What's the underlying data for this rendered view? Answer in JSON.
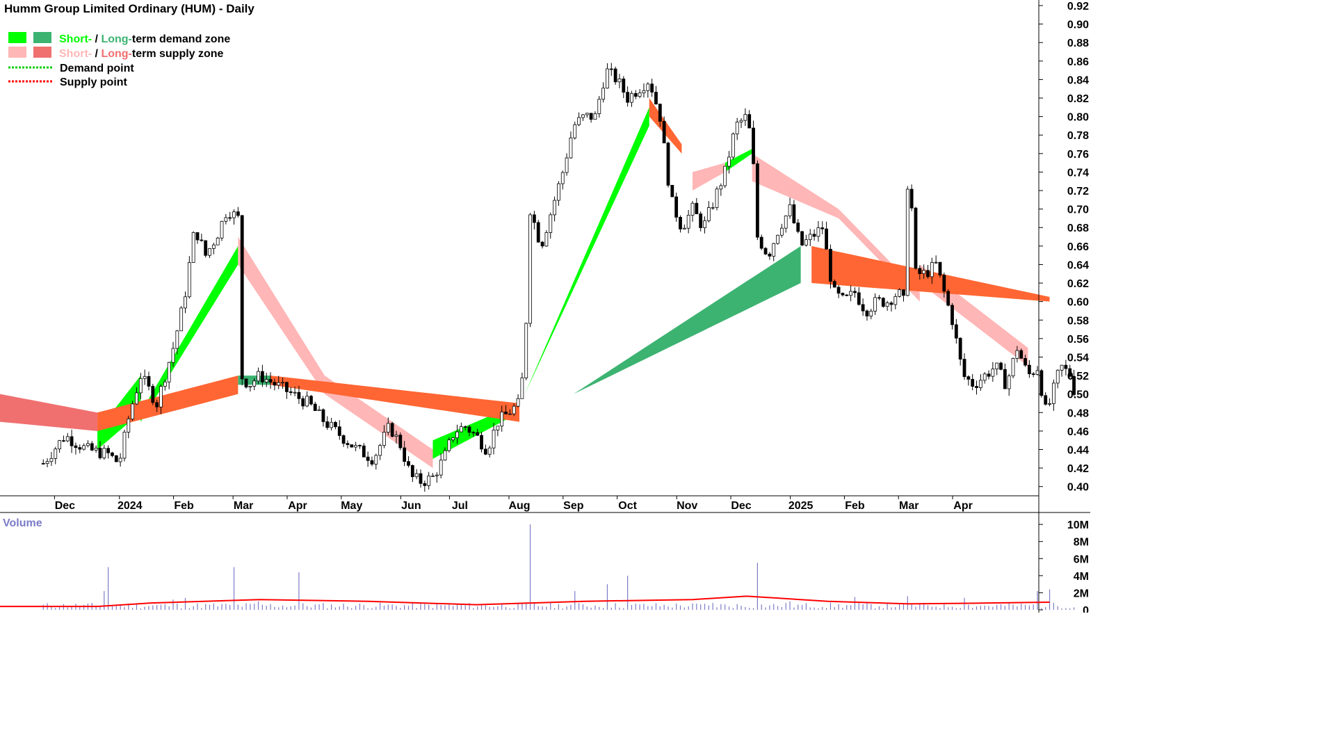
{
  "title": "Humm Group Limited Ordinary (HUM) - Daily",
  "legend": {
    "demand_zone": {
      "short": "Short-",
      "sep": " / ",
      "long": "Long-",
      "rest": "term demand zone"
    },
    "supply_zone": {
      "short": "Short-",
      "sep": " / ",
      "long": "Long-",
      "rest": "term supply zone"
    },
    "demand_point": "Demand point",
    "supply_point": "Supply point"
  },
  "colors": {
    "short_demand": "#00ff00",
    "long_demand": "#3cb371",
    "short_supply": "#ffb6b6",
    "long_supply": "#ff6633",
    "long_supply_legend": "#f07070",
    "demand_point": "#00cc00",
    "supply_point": "#ff0000",
    "volume_bar": "#7b7bc8",
    "volume_avg": "#ff0000",
    "volume_text": "#7b7bc8"
  },
  "chart_data": {
    "type": "line",
    "price_axis": {
      "ylim": [
        0.39,
        0.92
      ],
      "ticks": [
        "0.40",
        "0.42",
        "0.44",
        "0.46",
        "0.48",
        "0.50",
        "0.52",
        "0.54",
        "0.56",
        "0.58",
        "0.60",
        "0.62",
        "0.64",
        "0.66",
        "0.68",
        "0.70",
        "0.72",
        "0.74",
        "0.76",
        "0.78",
        "0.80",
        "0.82",
        "0.84",
        "0.86",
        "0.88",
        "0.90",
        "0.92"
      ]
    },
    "x_axis": {
      "labels": [
        "Dec",
        "2024",
        "Feb",
        "Mar",
        "Apr",
        "May",
        "Jun",
        "Jul",
        "Aug",
        "Sep",
        "Oct",
        "Nov",
        "Dec",
        "2025",
        "Feb",
        "Mar",
        "Apr"
      ],
      "label_positions": [
        4,
        16,
        26,
        37,
        47,
        57,
        68,
        77,
        88,
        98,
        108,
        119,
        129,
        140,
        150,
        160,
        170
      ]
    },
    "x_range": [
      -8,
      184
    ],
    "price_close": [
      [
        0,
        0.425
      ],
      [
        4,
        0.455
      ],
      [
        8,
        0.44
      ],
      [
        12,
        0.435
      ],
      [
        14,
        0.425
      ],
      [
        16,
        0.48
      ],
      [
        18,
        0.52
      ],
      [
        21,
        0.49
      ],
      [
        24,
        0.55
      ],
      [
        26,
        0.6
      ],
      [
        28,
        0.68
      ],
      [
        30,
        0.65
      ],
      [
        32,
        0.67
      ],
      [
        34,
        0.7
      ],
      [
        36,
        0.69
      ],
      [
        36.5,
        0.52
      ],
      [
        38,
        0.51
      ],
      [
        40,
        0.52
      ],
      [
        43,
        0.51
      ],
      [
        46,
        0.5
      ],
      [
        49,
        0.49
      ],
      [
        52,
        0.47
      ],
      [
        55,
        0.455
      ],
      [
        58,
        0.44
      ],
      [
        61,
        0.43
      ],
      [
        64,
        0.465
      ],
      [
        66,
        0.445
      ],
      [
        68,
        0.41
      ],
      [
        70,
        0.405
      ],
      [
        72,
        0.41
      ],
      [
        74,
        0.43
      ],
      [
        76,
        0.46
      ],
      [
        78,
        0.465
      ],
      [
        80,
        0.455
      ],
      [
        82,
        0.44
      ],
      [
        84,
        0.47
      ],
      [
        86,
        0.48
      ],
      [
        88,
        0.49
      ],
      [
        89,
        0.54
      ],
      [
        90,
        0.7
      ],
      [
        92,
        0.66
      ],
      [
        94,
        0.7
      ],
      [
        96,
        0.74
      ],
      [
        98,
        0.79
      ],
      [
        100,
        0.8
      ],
      [
        102,
        0.8
      ],
      [
        104,
        0.85
      ],
      [
        106,
        0.84
      ],
      [
        108,
        0.82
      ],
      [
        110,
        0.83
      ],
      [
        112,
        0.84
      ],
      [
        114,
        0.8
      ],
      [
        116,
        0.71
      ],
      [
        118,
        0.68
      ],
      [
        120,
        0.7
      ],
      [
        122,
        0.68
      ],
      [
        124,
        0.71
      ],
      [
        126,
        0.74
      ],
      [
        128,
        0.79
      ],
      [
        130,
        0.8
      ],
      [
        131,
        0.77
      ],
      [
        132,
        0.67
      ],
      [
        134,
        0.65
      ],
      [
        136,
        0.68
      ],
      [
        138,
        0.7
      ],
      [
        140,
        0.66
      ],
      [
        142,
        0.67
      ],
      [
        144,
        0.68
      ],
      [
        146,
        0.61
      ],
      [
        148,
        0.6
      ],
      [
        150,
        0.61
      ],
      [
        152,
        0.59
      ],
      [
        154,
        0.6
      ],
      [
        156,
        0.6
      ],
      [
        158,
        0.61
      ],
      [
        159,
        0.6
      ],
      [
        160,
        0.77
      ],
      [
        161,
        0.63
      ],
      [
        163,
        0.63
      ],
      [
        165,
        0.64
      ],
      [
        166,
        0.62
      ],
      [
        168,
        0.58
      ],
      [
        170,
        0.52
      ],
      [
        172,
        0.51
      ],
      [
        174,
        0.52
      ],
      [
        176,
        0.53
      ],
      [
        178,
        0.51
      ],
      [
        180,
        0.55
      ],
      [
        182,
        0.52
      ],
      [
        184,
        0.53
      ],
      [
        185,
        0.48
      ],
      [
        186,
        0.49
      ],
      [
        188,
        0.53
      ],
      [
        190,
        0.52
      ],
      [
        191,
        0.49
      ]
    ],
    "series": [
      {
        "role": "short-term demand zone",
        "segments": [
          [
            10,
            18,
            0.44,
            0.48,
            0.46,
            0.52
          ],
          [
            18,
            36,
            0.47,
            0.64,
            0.48,
            0.66
          ],
          [
            72,
            88,
            0.43,
            0.48,
            0.45,
            0.49
          ],
          [
            89,
            112,
            0.5,
            0.79,
            0.5,
            0.81
          ],
          [
            126,
            131,
            0.74,
            0.76,
            0.75,
            0.765
          ]
        ]
      },
      {
        "role": "long-term demand zone",
        "segments": [
          [
            36,
            42,
            0.51,
            0.51,
            0.52,
            0.52
          ],
          [
            98,
            140,
            0.5,
            0.62,
            0.5,
            0.66
          ]
        ]
      },
      {
        "role": "short-term supply zone",
        "segments": [
          [
            36,
            52,
            0.64,
            0.5,
            0.67,
            0.52
          ],
          [
            52,
            72,
            0.5,
            0.42,
            0.52,
            0.44
          ],
          [
            120,
            126,
            0.72,
            0.74,
            0.74,
            0.75
          ],
          [
            131,
            147,
            0.73,
            0.69,
            0.76,
            0.7
          ],
          [
            147,
            162,
            0.69,
            0.6,
            0.7,
            0.61
          ],
          [
            162,
            182,
            0.62,
            0.53,
            0.64,
            0.55
          ]
        ]
      },
      {
        "role": "long-term supply zone",
        "segments": [
          [
            -8,
            10,
            0.47,
            0.46,
            0.5,
            0.48
          ],
          [
            10,
            36,
            0.46,
            0.5,
            0.48,
            0.52
          ],
          [
            42,
            88,
            0.51,
            0.47,
            0.52,
            0.49
          ],
          [
            112,
            118,
            0.8,
            0.76,
            0.82,
            0.77
          ],
          [
            142,
            186,
            0.62,
            0.6,
            0.66,
            0.605
          ]
        ]
      }
    ],
    "volume_axis": {
      "ylim": [
        0,
        10.5
      ],
      "ticks": [
        "10M",
        "8M",
        "6M",
        "4M",
        "2M",
        "0"
      ]
    },
    "volume_label": "Volume",
    "volume_spikes": [
      [
        11,
        2.2
      ],
      [
        12,
        5
      ],
      [
        24,
        1.2
      ],
      [
        26,
        1.4
      ],
      [
        35,
        5
      ],
      [
        40,
        1
      ],
      [
        47,
        4.4
      ],
      [
        90,
        10
      ],
      [
        98,
        2.2
      ],
      [
        104,
        3
      ],
      [
        108,
        4
      ],
      [
        124,
        0.8
      ],
      [
        132,
        5.5
      ],
      [
        138,
        1
      ],
      [
        150,
        1.5
      ],
      [
        160,
        1.6
      ],
      [
        170,
        1.4
      ],
      [
        184,
        2.2
      ],
      [
        186,
        2.4
      ]
    ],
    "volume_base": 0.5,
    "volume_avg": [
      [
        -8,
        0.4
      ],
      [
        10,
        0.4
      ],
      [
        20,
        0.8
      ],
      [
        40,
        1.2
      ],
      [
        60,
        1
      ],
      [
        80,
        0.6
      ],
      [
        100,
        1
      ],
      [
        120,
        1.2
      ],
      [
        130,
        1.6
      ],
      [
        135,
        1.4
      ],
      [
        145,
        1
      ],
      [
        160,
        0.7
      ],
      [
        175,
        0.8
      ],
      [
        186,
        0.9
      ]
    ]
  }
}
